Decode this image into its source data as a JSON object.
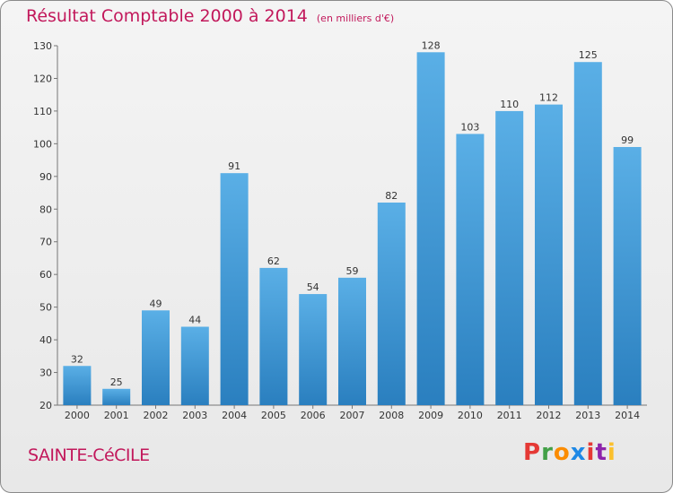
{
  "header": {
    "title": "Résultat Comptable 2000 à 2014",
    "subtitle": "(en milliers d'€)"
  },
  "footer": {
    "commune": "SAINTE-CéCILE",
    "logo": "Proxiti"
  },
  "colors": {
    "title": "#c2185b",
    "bar_top": "#5aafe6",
    "bar_bottom": "#2a7fbf",
    "logo_letters": [
      "#e53935",
      "#43a047",
      "#fb8c00",
      "#1e88e5",
      "#e53935",
      "#8e24aa",
      "#fbc02d"
    ]
  },
  "chart_data": {
    "type": "bar",
    "title": "Résultat Comptable 2000 à 2014",
    "categories": [
      "2000",
      "2001",
      "2002",
      "2003",
      "2004",
      "2005",
      "2006",
      "2007",
      "2008",
      "2009",
      "2010",
      "2011",
      "2012",
      "2013",
      "2014"
    ],
    "values": [
      32,
      25,
      49,
      44,
      91,
      62,
      54,
      59,
      82,
      128,
      103,
      110,
      112,
      125,
      99
    ],
    "ylim": [
      20,
      130
    ],
    "yticks": [
      20,
      30,
      40,
      50,
      60,
      70,
      80,
      90,
      100,
      110,
      120,
      130
    ],
    "grid": false,
    "xlabel": "",
    "ylabel": ""
  }
}
